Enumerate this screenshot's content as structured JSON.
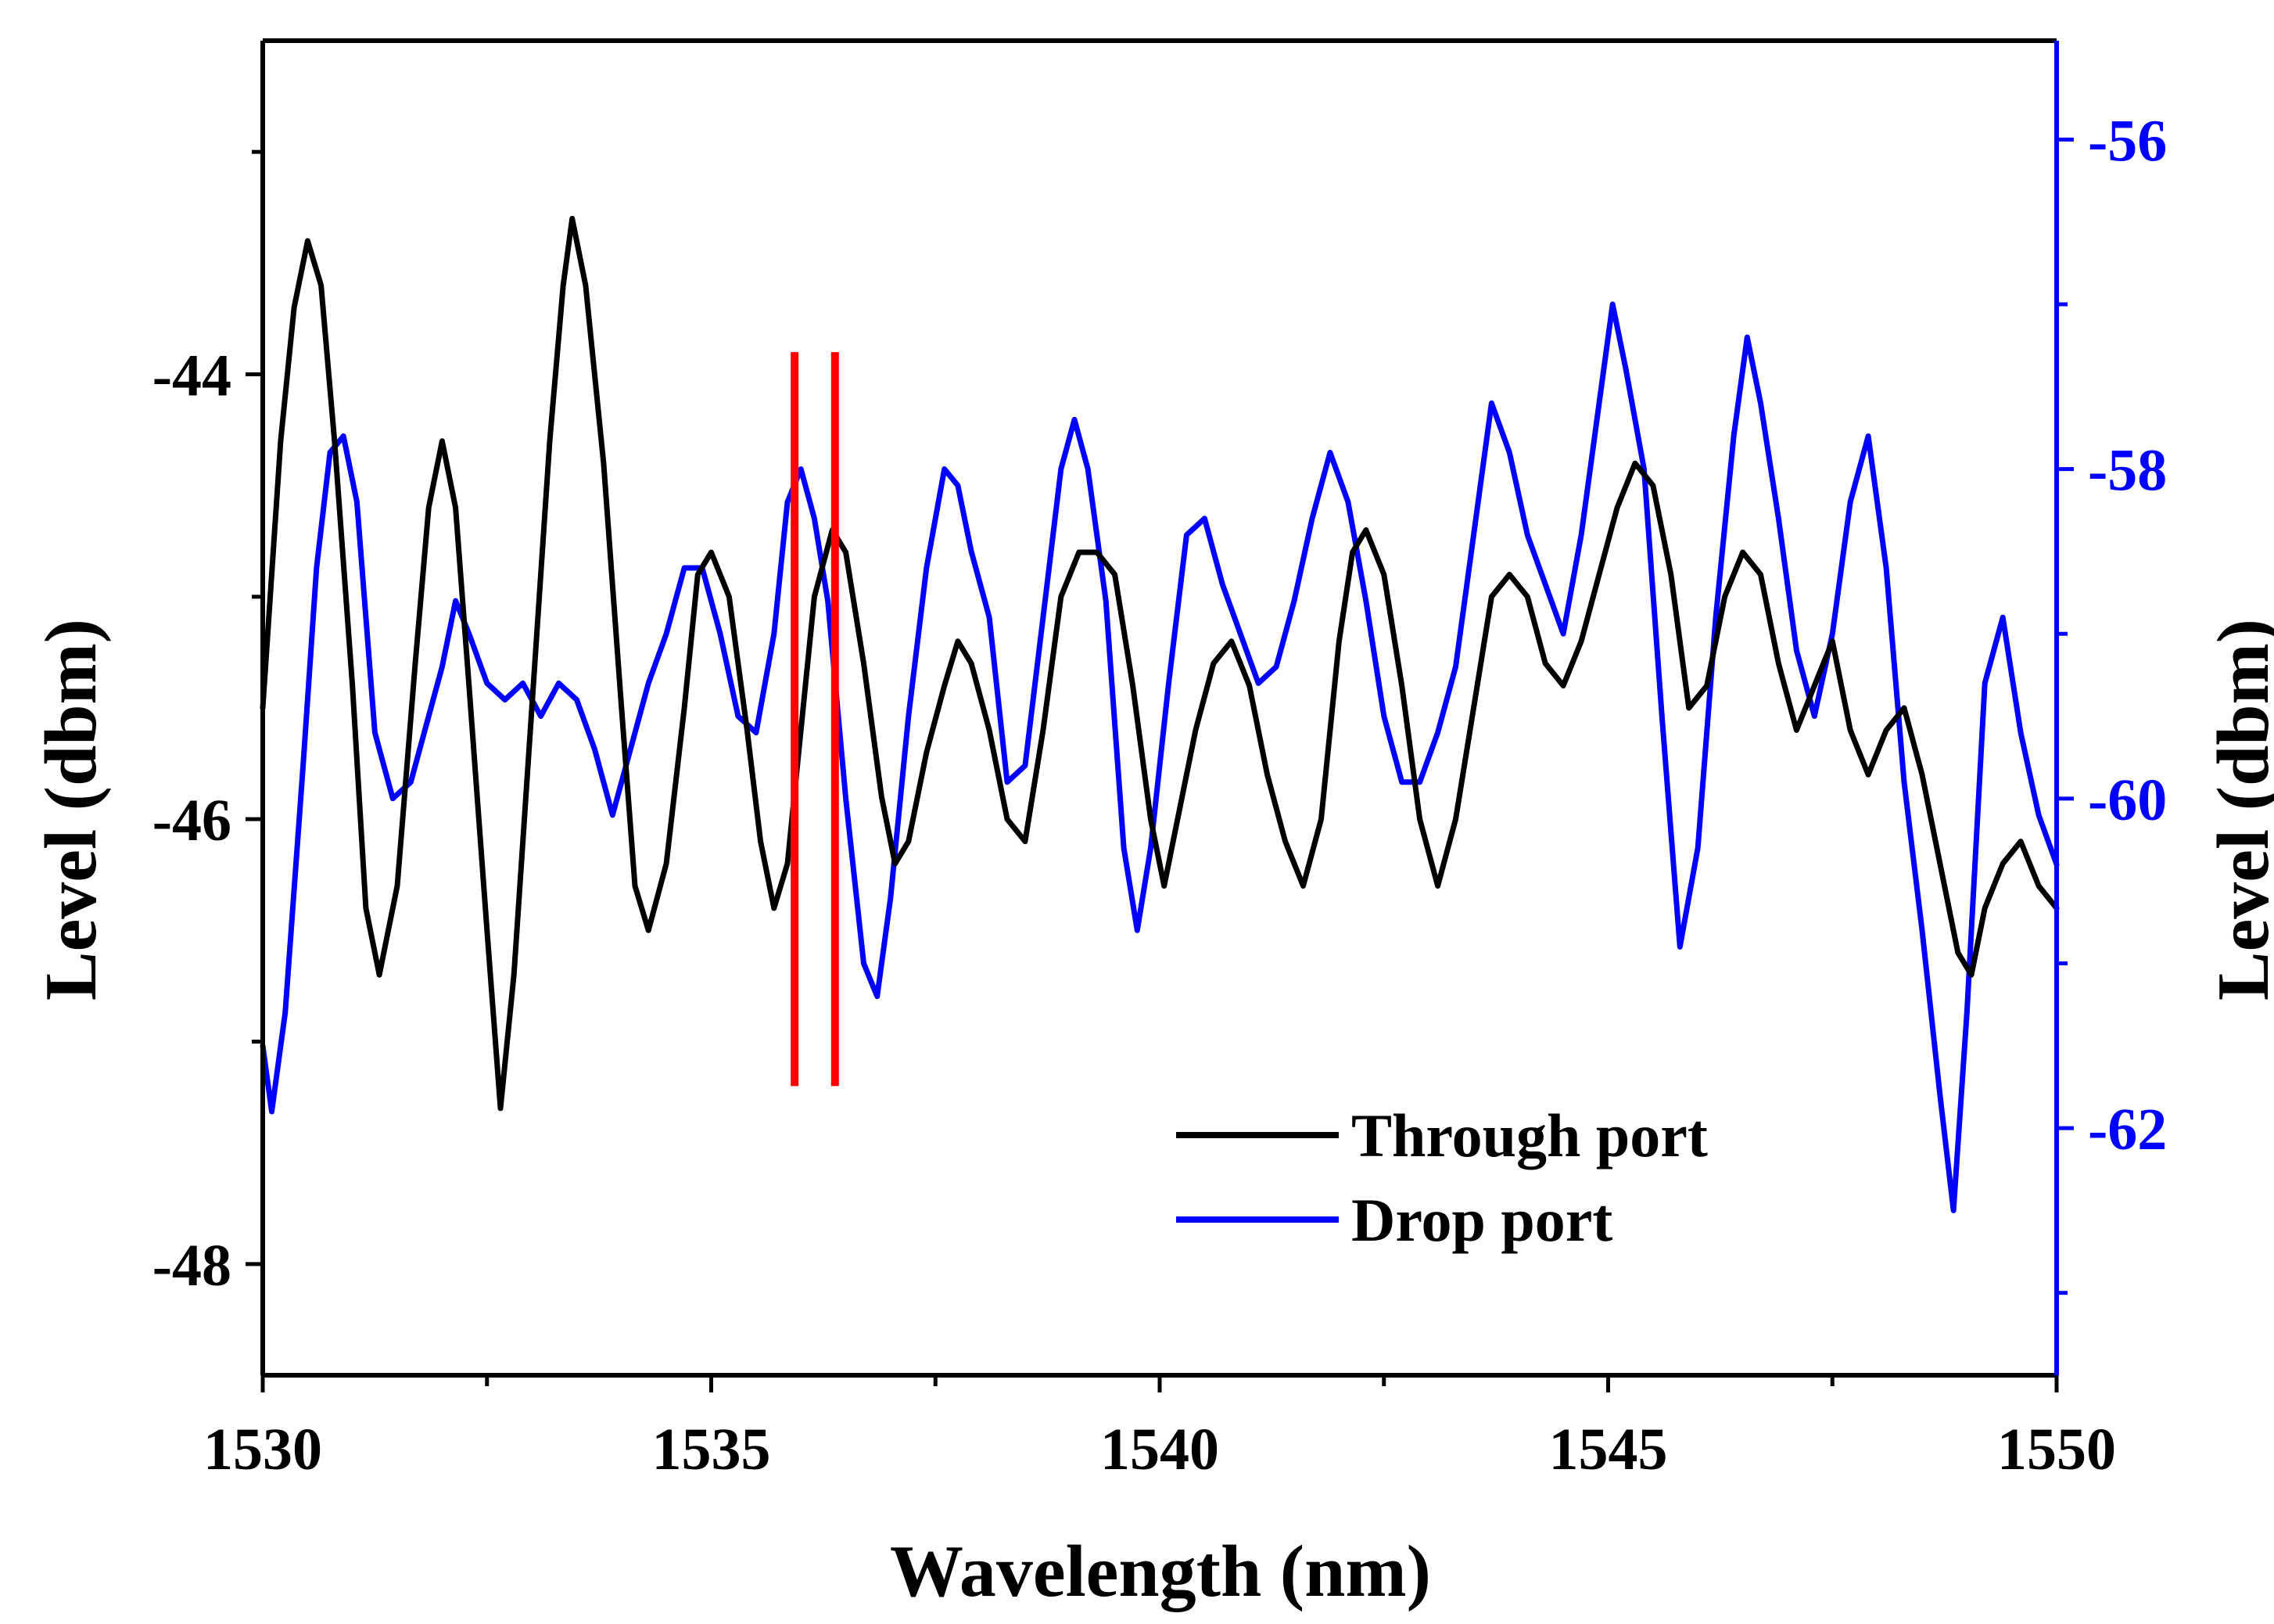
{
  "chart_data": {
    "type": "line",
    "xlabel": "Wavelength (nm)",
    "ylabel_left": "Level (dbm)",
    "ylabel_right": "Level (dbm)",
    "xlim": [
      1530,
      1550
    ],
    "ylim_left": [
      -48.5,
      -42.5
    ],
    "ylim_right": [
      -63.5,
      -55.4
    ],
    "x_ticks": [
      "1530",
      "1535",
      "1540",
      "1545",
      "1550"
    ],
    "y_ticks_left": [
      "-44",
      "-46",
      "-48"
    ],
    "y_ticks_right": [
      "-56",
      "-58",
      "-60",
      "-62"
    ],
    "grid": false,
    "legend_position": "bottom-right",
    "colors": {
      "through": "#000000",
      "drop": "#0000ff",
      "marker": "#ff0000",
      "axis_right": "#0000ff"
    },
    "markers_x": [
      1535.93,
      1536.38
    ],
    "markers_y": [
      -43.9,
      -47.2
    ],
    "series": [
      {
        "name": "Through port",
        "axis": "left",
        "x": [
          1530.0,
          1530.2,
          1530.35,
          1530.5,
          1530.65,
          1530.8,
          1531.0,
          1531.15,
          1531.3,
          1531.5,
          1531.7,
          1531.85,
          1532.0,
          1532.15,
          1532.3,
          1532.5,
          1532.65,
          1532.8,
          1533.0,
          1533.2,
          1533.35,
          1533.45,
          1533.6,
          1533.8,
          1534.0,
          1534.15,
          1534.3,
          1534.5,
          1534.7,
          1534.85,
          1535.0,
          1535.2,
          1535.4,
          1535.55,
          1535.7,
          1535.85,
          1536.0,
          1536.15,
          1536.35,
          1536.5,
          1536.7,
          1536.9,
          1537.05,
          1537.2,
          1537.4,
          1537.6,
          1537.75,
          1537.9,
          1538.1,
          1538.3,
          1538.5,
          1538.7,
          1538.9,
          1539.1,
          1539.3,
          1539.5,
          1539.7,
          1539.9,
          1540.05,
          1540.2,
          1540.4,
          1540.6,
          1540.8,
          1541.0,
          1541.2,
          1541.4,
          1541.6,
          1541.8,
          1542.0,
          1542.15,
          1542.3,
          1542.5,
          1542.7,
          1542.9,
          1543.1,
          1543.3,
          1543.5,
          1543.7,
          1543.9,
          1544.1,
          1544.3,
          1544.5,
          1544.7,
          1544.9,
          1545.1,
          1545.3,
          1545.5,
          1545.7,
          1545.9,
          1546.1,
          1546.3,
          1546.5,
          1546.7,
          1546.9,
          1547.1,
          1547.3,
          1547.5,
          1547.7,
          1547.9,
          1548.1,
          1548.3,
          1548.5,
          1548.7,
          1548.9,
          1549.05,
          1549.2,
          1549.4,
          1549.6,
          1549.8,
          1550.0
        ],
        "y": [
          -45.5,
          -44.3,
          -43.7,
          -43.4,
          -43.6,
          -44.3,
          -45.4,
          -46.4,
          -46.7,
          -46.3,
          -45.3,
          -44.6,
          -44.3,
          -44.6,
          -45.4,
          -46.5,
          -47.3,
          -46.7,
          -45.5,
          -44.3,
          -43.6,
          -43.3,
          -43.6,
          -44.4,
          -45.5,
          -46.3,
          -46.5,
          -46.2,
          -45.5,
          -44.9,
          -44.8,
          -45.0,
          -45.6,
          -46.1,
          -46.4,
          -46.2,
          -45.6,
          -45.0,
          -44.7,
          -44.8,
          -45.3,
          -45.9,
          -46.2,
          -46.1,
          -45.7,
          -45.4,
          -45.2,
          -45.3,
          -45.6,
          -46.0,
          -46.1,
          -45.6,
          -45.0,
          -44.8,
          -44.8,
          -44.9,
          -45.4,
          -46.0,
          -46.3,
          -46.0,
          -45.6,
          -45.3,
          -45.2,
          -45.4,
          -45.8,
          -46.1,
          -46.3,
          -46.0,
          -45.2,
          -44.8,
          -44.7,
          -44.9,
          -45.4,
          -46.0,
          -46.3,
          -46.0,
          -45.5,
          -45.0,
          -44.9,
          -45.0,
          -45.3,
          -45.4,
          -45.2,
          -44.9,
          -44.6,
          -44.4,
          -44.5,
          -44.9,
          -45.5,
          -45.4,
          -45.0,
          -44.8,
          -44.9,
          -45.3,
          -45.6,
          -45.4,
          -45.2,
          -45.6,
          -45.8,
          -45.6,
          -45.5,
          -45.8,
          -46.2,
          -46.6,
          -46.7,
          -46.4,
          -46.2,
          -46.1,
          -46.3,
          -46.4
        ]
      },
      {
        "name": "Drop port",
        "axis": "right",
        "x": [
          1530.0,
          1530.1,
          1530.25,
          1530.45,
          1530.6,
          1530.75,
          1530.9,
          1531.05,
          1531.25,
          1531.45,
          1531.65,
          1531.8,
          1532.0,
          1532.15,
          1532.3,
          1532.5,
          1532.7,
          1532.9,
          1533.1,
          1533.3,
          1533.5,
          1533.7,
          1533.9,
          1534.1,
          1534.3,
          1534.5,
          1534.7,
          1534.9,
          1535.1,
          1535.3,
          1535.5,
          1535.7,
          1535.85,
          1536.0,
          1536.15,
          1536.3,
          1536.5,
          1536.7,
          1536.85,
          1537.0,
          1537.2,
          1537.4,
          1537.6,
          1537.75,
          1537.9,
          1538.1,
          1538.3,
          1538.5,
          1538.7,
          1538.9,
          1539.05,
          1539.2,
          1539.4,
          1539.6,
          1539.75,
          1539.9,
          1540.1,
          1540.3,
          1540.5,
          1540.7,
          1540.9,
          1541.1,
          1541.3,
          1541.5,
          1541.7,
          1541.9,
          1542.1,
          1542.3,
          1542.5,
          1542.7,
          1542.9,
          1543.1,
          1543.3,
          1543.5,
          1543.7,
          1543.9,
          1544.1,
          1544.3,
          1544.5,
          1544.7,
          1544.9,
          1545.05,
          1545.2,
          1545.4,
          1545.6,
          1545.8,
          1546.0,
          1546.2,
          1546.4,
          1546.55,
          1546.7,
          1546.9,
          1547.1,
          1547.3,
          1547.5,
          1547.7,
          1547.9,
          1548.1,
          1548.3,
          1548.5,
          1548.7,
          1548.85,
          1549.0,
          1549.2,
          1549.4,
          1549.6,
          1549.8,
          1550.0
        ],
        "y": [
          -61.5,
          -61.9,
          -61.3,
          -59.8,
          -58.6,
          -57.9,
          -57.8,
          -58.2,
          -59.6,
          -60.0,
          -59.9,
          -59.6,
          -59.2,
          -58.8,
          -59.0,
          -59.3,
          -59.4,
          -59.3,
          -59.5,
          -59.3,
          -59.4,
          -59.7,
          -60.1,
          -59.7,
          -59.3,
          -59.0,
          -58.6,
          -58.6,
          -59.0,
          -59.5,
          -59.6,
          -59.0,
          -58.2,
          -58.0,
          -58.3,
          -58.8,
          -60.0,
          -61.0,
          -61.2,
          -60.6,
          -59.5,
          -58.6,
          -58.0,
          -58.1,
          -58.5,
          -58.9,
          -59.9,
          -59.8,
          -58.9,
          -58.0,
          -57.7,
          -58.0,
          -58.8,
          -60.3,
          -60.8,
          -60.3,
          -59.3,
          -58.4,
          -58.3,
          -58.7,
          -59.0,
          -59.3,
          -59.2,
          -58.8,
          -58.3,
          -57.9,
          -58.2,
          -58.8,
          -59.5,
          -59.9,
          -59.9,
          -59.6,
          -59.2,
          -58.4,
          -57.6,
          -57.9,
          -58.4,
          -58.7,
          -59.0,
          -58.4,
          -57.6,
          -57.0,
          -57.4,
          -58.0,
          -59.5,
          -60.9,
          -60.3,
          -58.9,
          -57.8,
          -57.2,
          -57.6,
          -58.3,
          -59.1,
          -59.5,
          -59.0,
          -58.2,
          -57.8,
          -58.6,
          -59.9,
          -60.8,
          -61.8,
          -62.5,
          -61.3,
          -59.3,
          -58.9,
          -59.6,
          -60.1,
          -60.4
        ]
      }
    ],
    "legend": [
      {
        "label": "Through port",
        "color": "#000000"
      },
      {
        "label": "Drop port",
        "color": "#0000ff"
      }
    ]
  }
}
